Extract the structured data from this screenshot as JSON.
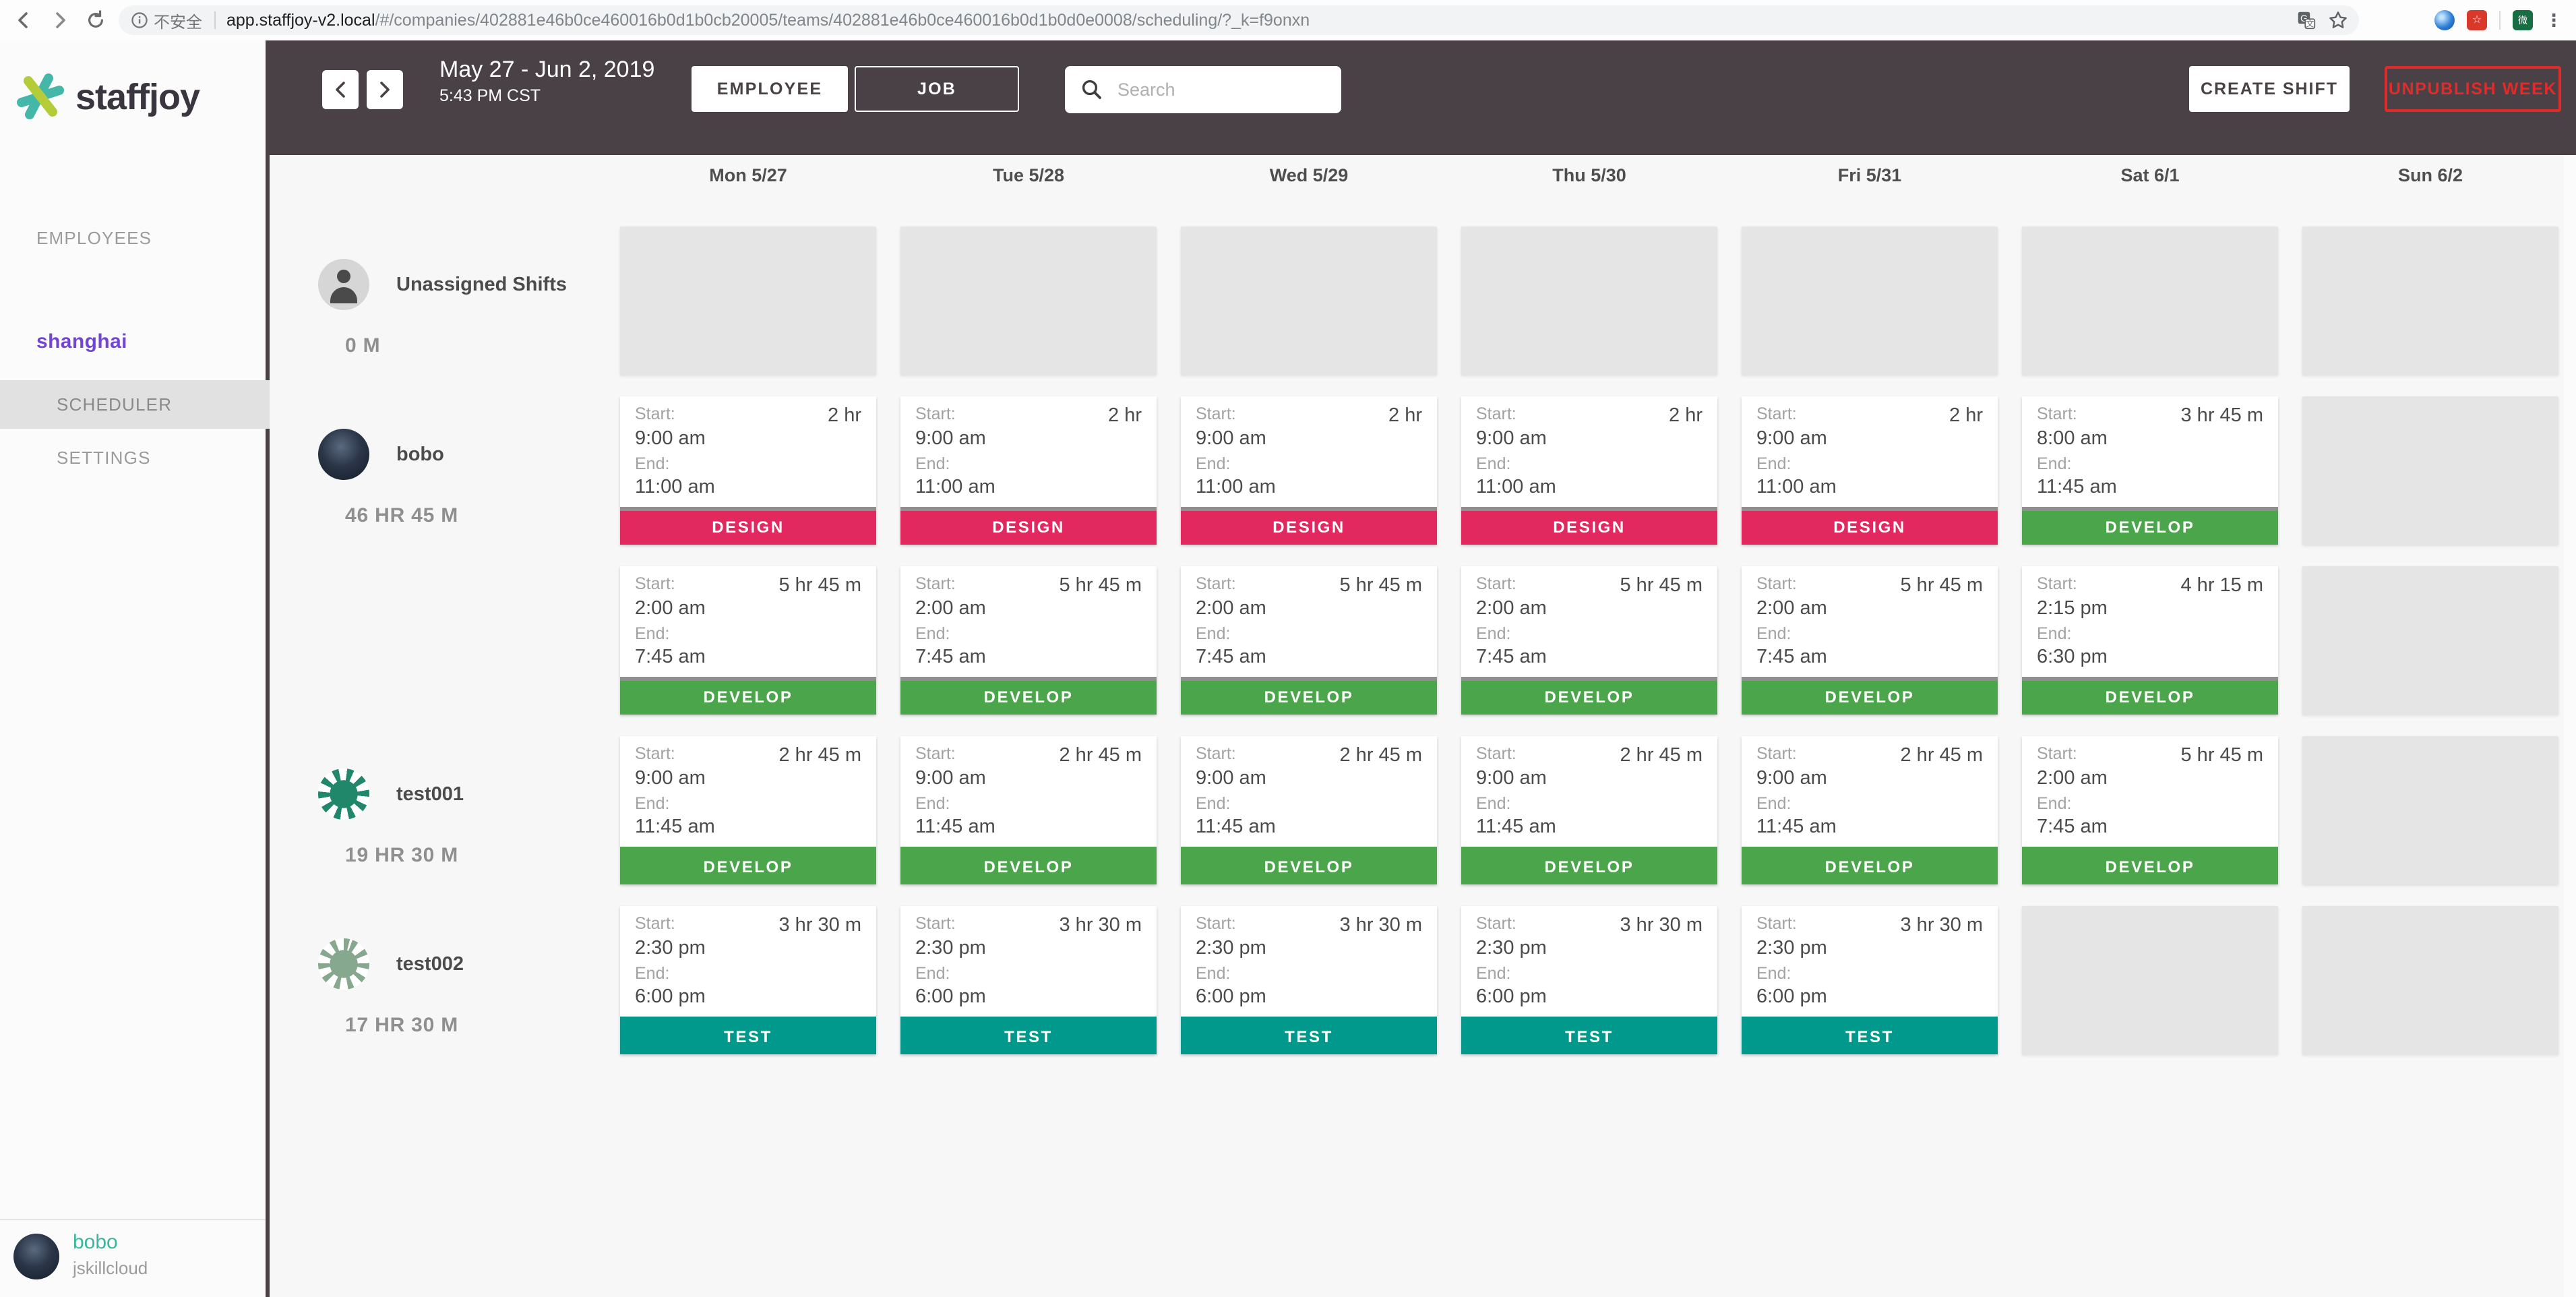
{
  "browser": {
    "security_label": "不安全",
    "url_host": "app.staffjoy-v2.local",
    "url_path": "/#/companies/402881e46b0ce460016b0d1b0cb20005/teams/402881e46b0ce460016b0d1b0d0e0008/scheduling/?_k=f9onxn",
    "extension_icons": [
      "translate-icon",
      "bookmark-star-icon",
      "blue-lens-extension-icon",
      "red-extension-icon",
      "green-extension-icon",
      "browser-menu-icon"
    ]
  },
  "sidebar": {
    "brand": "staffjoy",
    "nav_employees": "EMPLOYEES",
    "team": "shanghai",
    "nav_scheduler": "SCHEDULER",
    "nav_settings": "SETTINGS",
    "user_name": "bobo",
    "user_company": "jskillcloud"
  },
  "toolbar": {
    "date_range": "May 27 - Jun 2, 2019",
    "time": "5:43 PM CST",
    "view_employee": "EMPLOYEE",
    "view_job": "JOB",
    "search_placeholder": "Search",
    "create_shift": "CREATE SHIFT",
    "unpublish_week": "UNPUBLISH WEEK"
  },
  "calendar": {
    "days": [
      "Mon 5/27",
      "Tue 5/28",
      "Wed 5/29",
      "Thu 5/30",
      "Fri 5/31",
      "Sat 6/1",
      "Sun 6/2"
    ],
    "start_label": "Start:",
    "end_label": "End:",
    "job_colors": {
      "DESIGN": "#e2295f",
      "DEVELOP": "#4ba64b",
      "TEST": "#00998c"
    },
    "rows": [
      {
        "name": "Unassigned Shifts",
        "hours": "0 M",
        "avatar": "person",
        "subrows": [
          [
            null,
            null,
            null,
            null,
            null,
            null,
            null
          ]
        ]
      },
      {
        "name": "bobo",
        "hours": "46 HR 45 M",
        "avatar": "photo",
        "subrows": [
          [
            {
              "start": "9:00 am",
              "end": "11:00 am",
              "duration": "2 hr",
              "job": "DESIGN",
              "topline": true
            },
            {
              "start": "9:00 am",
              "end": "11:00 am",
              "duration": "2 hr",
              "job": "DESIGN",
              "topline": true
            },
            {
              "start": "9:00 am",
              "end": "11:00 am",
              "duration": "2 hr",
              "job": "DESIGN",
              "topline": true
            },
            {
              "start": "9:00 am",
              "end": "11:00 am",
              "duration": "2 hr",
              "job": "DESIGN",
              "topline": true
            },
            {
              "start": "9:00 am",
              "end": "11:00 am",
              "duration": "2 hr",
              "job": "DESIGN",
              "topline": true
            },
            {
              "start": "8:00 am",
              "end": "11:45 am",
              "duration": "3 hr 45 m",
              "job": "DEVELOP",
              "topline": true
            },
            null
          ],
          [
            {
              "start": "2:00 am",
              "end": "7:45 am",
              "duration": "5 hr 45 m",
              "job": "DEVELOP",
              "topline": true
            },
            {
              "start": "2:00 am",
              "end": "7:45 am",
              "duration": "5 hr 45 m",
              "job": "DEVELOP",
              "topline": true
            },
            {
              "start": "2:00 am",
              "end": "7:45 am",
              "duration": "5 hr 45 m",
              "job": "DEVELOP",
              "topline": true
            },
            {
              "start": "2:00 am",
              "end": "7:45 am",
              "duration": "5 hr 45 m",
              "job": "DEVELOP",
              "topline": true
            },
            {
              "start": "2:00 am",
              "end": "7:45 am",
              "duration": "5 hr 45 m",
              "job": "DEVELOP",
              "topline": true
            },
            {
              "start": "2:15 pm",
              "end": "6:30 pm",
              "duration": "4 hr 15 m",
              "job": "DEVELOP",
              "topline": true
            },
            null
          ]
        ]
      },
      {
        "name": "test001",
        "hours": "19 HR 30 M",
        "avatar": "pattern-green",
        "subrows": [
          [
            {
              "start": "9:00 am",
              "end": "11:45 am",
              "duration": "2 hr 45 m",
              "job": "DEVELOP",
              "topline": false
            },
            {
              "start": "9:00 am",
              "end": "11:45 am",
              "duration": "2 hr 45 m",
              "job": "DEVELOP",
              "topline": false
            },
            {
              "start": "9:00 am",
              "end": "11:45 am",
              "duration": "2 hr 45 m",
              "job": "DEVELOP",
              "topline": false
            },
            {
              "start": "9:00 am",
              "end": "11:45 am",
              "duration": "2 hr 45 m",
              "job": "DEVELOP",
              "topline": false
            },
            {
              "start": "9:00 am",
              "end": "11:45 am",
              "duration": "2 hr 45 m",
              "job": "DEVELOP",
              "topline": false
            },
            {
              "start": "2:00 am",
              "end": "7:45 am",
              "duration": "5 hr 45 m",
              "job": "DEVELOP",
              "topline": false
            },
            null
          ]
        ]
      },
      {
        "name": "test002",
        "hours": "17 HR 30 M",
        "avatar": "pattern-sage",
        "subrows": [
          [
            {
              "start": "2:30 pm",
              "end": "6:00 pm",
              "duration": "3 hr 30 m",
              "job": "TEST",
              "topline": false
            },
            {
              "start": "2:30 pm",
              "end": "6:00 pm",
              "duration": "3 hr 30 m",
              "job": "TEST",
              "topline": false
            },
            {
              "start": "2:30 pm",
              "end": "6:00 pm",
              "duration": "3 hr 30 m",
              "job": "TEST",
              "topline": false
            },
            {
              "start": "2:30 pm",
              "end": "6:00 pm",
              "duration": "3 hr 30 m",
              "job": "TEST",
              "topline": false
            },
            {
              "start": "2:30 pm",
              "end": "6:00 pm",
              "duration": "3 hr 30 m",
              "job": "TEST",
              "topline": false
            },
            null,
            null
          ]
        ]
      }
    ]
  }
}
